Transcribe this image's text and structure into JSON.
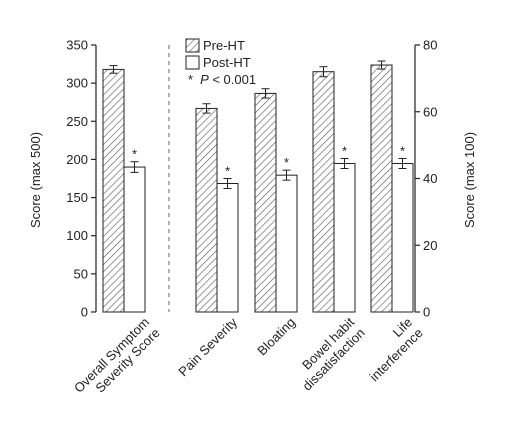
{
  "chart_data": {
    "type": "bar",
    "categories": [
      [
        "Overall Symptom",
        "Severity Score"
      ],
      [
        "Pain Severity"
      ],
      [
        "Bloating"
      ],
      [
        "Bowel habit",
        "dissatisfaction"
      ],
      [
        "Life",
        "interference"
      ]
    ],
    "category_axis": [
      "left",
      "right",
      "right",
      "right",
      "right"
    ],
    "series": [
      {
        "name": "Pre-HT",
        "values": [
          318,
          61,
          65.5,
          72,
          74
        ],
        "errors": [
          5,
          1.4,
          1.4,
          1.5,
          1.2
        ],
        "fill": "hatched"
      },
      {
        "name": "Post-HT",
        "values": [
          190,
          38.5,
          41,
          44.5,
          44.5
        ],
        "errors": [
          7,
          1.5,
          1.5,
          1.5,
          1.5
        ],
        "fill": "#ffffff"
      }
    ],
    "significance_marker": "*",
    "significance_text": "P < 0.001",
    "significance_flags": [
      true,
      true,
      true,
      true,
      true
    ],
    "left_axis": {
      "label": "Score (max 500)",
      "ylim": [
        0,
        350
      ],
      "ticks": [
        0,
        50,
        100,
        150,
        200,
        250,
        300,
        350
      ]
    },
    "right_axis": {
      "label": "Score (max 100)",
      "ylim": [
        0,
        80
      ],
      "ticks": [
        0,
        20,
        40,
        60,
        80
      ]
    },
    "legend": {
      "placement": "top-center",
      "entries": [
        "Pre-HT",
        "Post-HT"
      ],
      "note_marker": "*",
      "note_p": "P",
      "note_rest": " < 0.001"
    },
    "divider": "dashed-vertical",
    "grid": false
  }
}
